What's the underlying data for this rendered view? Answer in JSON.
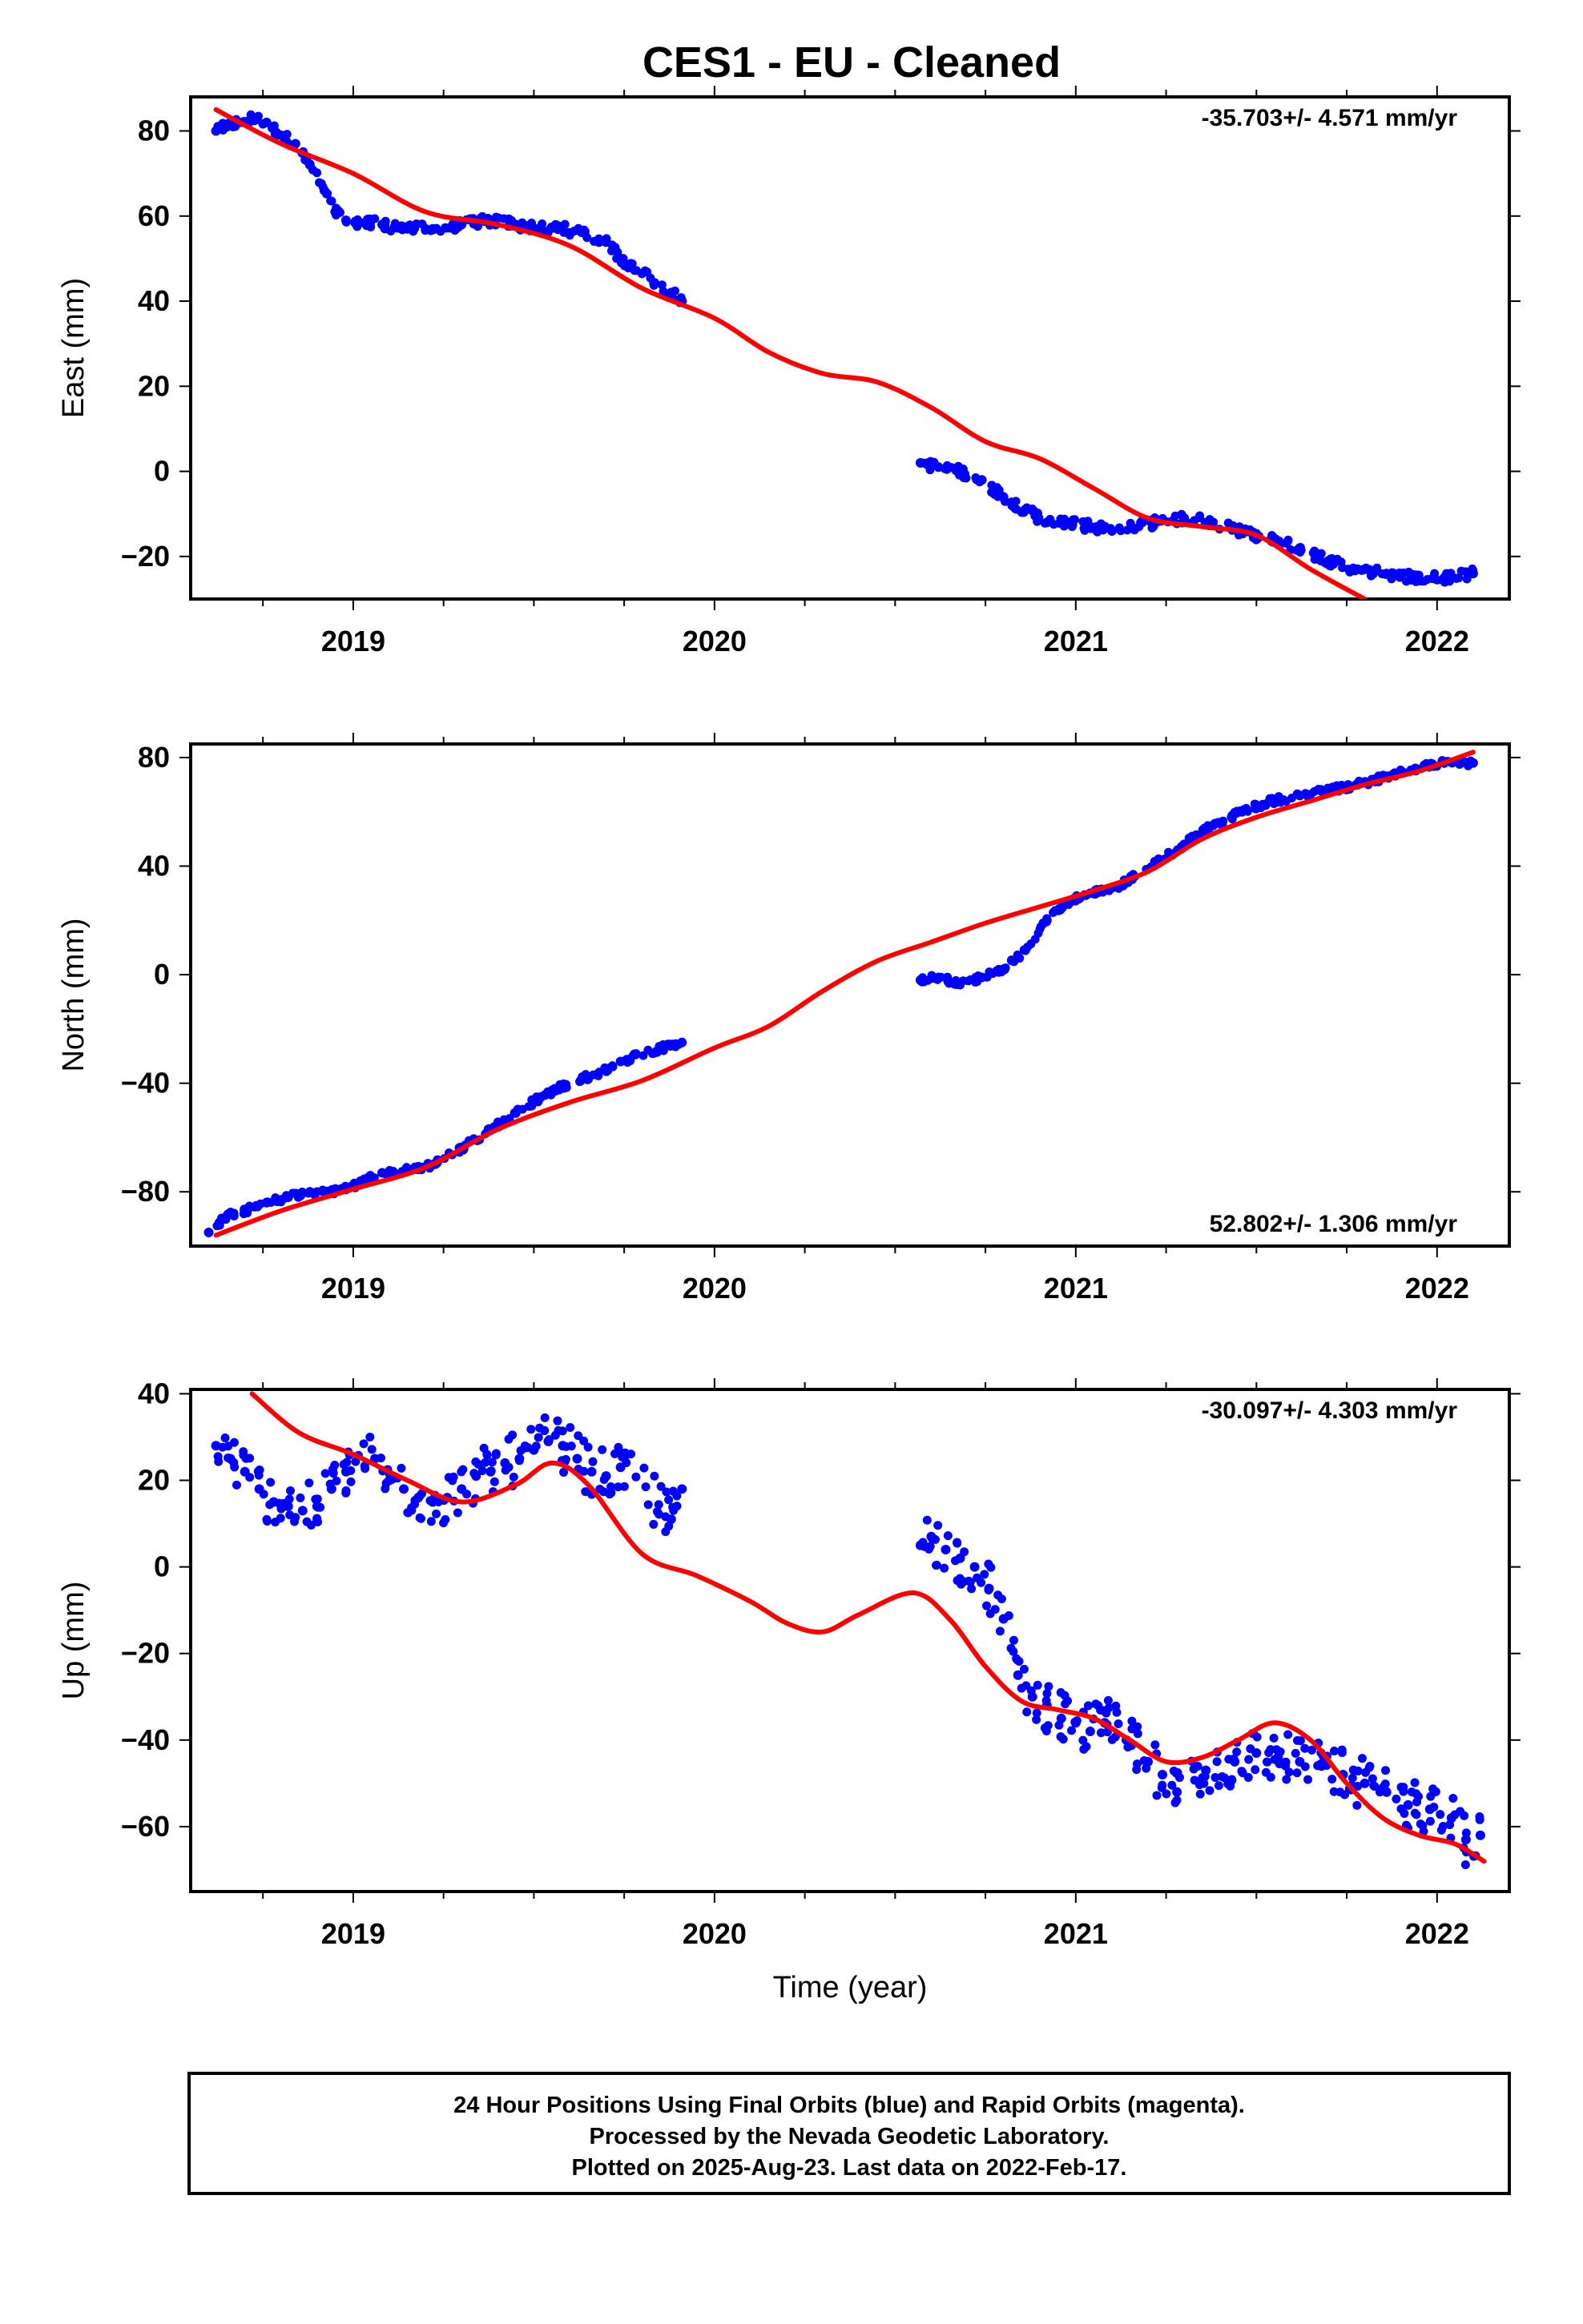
{
  "title": "CES1  - EU - Cleaned",
  "footer": {
    "lines": [
      "24 Hour Positions Using Final Orbits (blue) and Rapid Orbits (magenta).",
      "Processed by the Nevada Geodetic Laboratory.",
      "Plotted on 2025-Aug-23. Last data on 2022-Feb-17."
    ]
  },
  "colors": {
    "data_points": "#0000ff",
    "model_line": "#ff0000",
    "frame": "#000000"
  },
  "chart_data": [
    {
      "type": "scatter",
      "ylabel": "East (mm)",
      "xlabel": "",
      "rate_label": "-35.703+/- 4.571 mm/yr",
      "rate_label_position": "top-right",
      "xlim": [
        2018.55,
        2022.2
      ],
      "ylim": [
        -30,
        88
      ],
      "x_ticks": [
        2019,
        2020,
        2021,
        2022
      ],
      "y_ticks": [
        -20,
        0,
        20,
        40,
        60,
        80
      ],
      "series": [
        {
          "role": "data",
          "x": [
            2018.62,
            2018.65,
            2018.68,
            2018.72,
            2018.76,
            2018.8,
            2018.84,
            2018.88,
            2018.92,
            2018.95,
            2018.98,
            2019.08,
            2019.15,
            2019.22,
            2019.3,
            2019.38,
            2019.45,
            2019.52,
            2019.58,
            2019.64,
            2019.7,
            2019.74,
            2019.88,
            2019.91,
            2020.57,
            2020.62,
            2020.68,
            2020.74,
            2020.8,
            2020.86,
            2020.92,
            2020.98,
            2021.04,
            2021.1,
            2021.22,
            2021.3,
            2021.38,
            2021.46,
            2021.54,
            2021.62,
            2021.7,
            2021.78,
            2021.86,
            2021.94,
            2022.02,
            2022.1
          ],
          "y": [
            80,
            81,
            82,
            83,
            82,
            79,
            77,
            72,
            66,
            61,
            59,
            58,
            57,
            57,
            58,
            59,
            58,
            57,
            57,
            56,
            54,
            50,
            42,
            40,
            2,
            1,
            0,
            -2,
            -6,
            -9,
            -12,
            -12,
            -13,
            -14,
            -12,
            -11,
            -12,
            -14,
            -16,
            -18,
            -21,
            -23,
            -24,
            -25,
            -25,
            -24
          ]
        },
        {
          "role": "model",
          "x": [
            2018.62,
            2018.8,
            2019.0,
            2019.2,
            2019.4,
            2019.6,
            2019.8,
            2020.0,
            2020.15,
            2020.3,
            2020.45,
            2020.6,
            2020.75,
            2020.9,
            2021.05,
            2021.2,
            2021.35,
            2021.5,
            2021.65,
            2021.8
          ],
          "y": [
            85,
            77,
            70,
            61,
            58,
            53,
            43,
            36,
            28,
            23,
            21,
            15,
            7,
            3,
            -4,
            -11,
            -13,
            -15,
            -23,
            -30
          ]
        }
      ]
    },
    {
      "type": "scatter",
      "ylabel": "North (mm)",
      "xlabel": "",
      "rate_label": "52.802+/- 1.306 mm/yr",
      "rate_label_position": "bottom-right",
      "xlim": [
        2018.55,
        2022.2
      ],
      "ylim": [
        -100,
        85
      ],
      "x_ticks": [
        2019,
        2020,
        2021,
        2022
      ],
      "y_ticks": [
        -80,
        -40,
        0,
        40,
        80
      ],
      "series": [
        {
          "role": "data",
          "x": [
            2018.6,
            2018.65,
            2018.7,
            2018.76,
            2018.82,
            2018.88,
            2018.94,
            2019.0,
            2019.08,
            2019.15,
            2019.22,
            2019.3,
            2019.38,
            2019.45,
            2019.52,
            2019.58,
            2019.64,
            2019.7,
            2019.74,
            2019.88,
            2019.91,
            2020.57,
            2020.62,
            2020.68,
            2020.74,
            2020.8,
            2020.86,
            2020.92,
            2020.98,
            2021.04,
            2021.12,
            2021.22,
            2021.3,
            2021.38,
            2021.46,
            2021.54,
            2021.62,
            2021.7,
            2021.78,
            2021.86,
            2021.94,
            2022.02,
            2022.1
          ],
          "y": [
            -95,
            -89,
            -87,
            -84,
            -82,
            -80,
            -80,
            -78,
            -73,
            -72,
            -70,
            -64,
            -57,
            -51,
            -45,
            -41,
            -38,
            -35,
            -32,
            -26,
            -25,
            -2,
            -1,
            -3,
            -1,
            2,
            9,
            20,
            27,
            30,
            33,
            41,
            48,
            55,
            60,
            64,
            66,
            68,
            70,
            73,
            76,
            78,
            78
          ]
        },
        {
          "role": "model",
          "x": [
            2018.62,
            2018.8,
            2019.0,
            2019.2,
            2019.4,
            2019.6,
            2019.8,
            2020.0,
            2020.15,
            2020.3,
            2020.45,
            2020.6,
            2020.75,
            2020.9,
            2021.05,
            2021.2,
            2021.35,
            2021.5,
            2021.65,
            2021.8,
            2021.95,
            2022.1
          ],
          "y": [
            -96,
            -87,
            -79,
            -71,
            -57,
            -47,
            -39,
            -27,
            -19,
            -6,
            5,
            12,
            19,
            25,
            31,
            38,
            50,
            58,
            64,
            70,
            75,
            82
          ]
        }
      ]
    },
    {
      "type": "scatter",
      "ylabel": "Up (mm)",
      "xlabel": "Time (year)",
      "rate_label": "-30.097+/- 4.303 mm/yr",
      "rate_label_position": "top-right",
      "xlim": [
        2018.55,
        2022.2
      ],
      "ylim": [
        -75,
        41
      ],
      "x_ticks": [
        2019,
        2020,
        2021,
        2022
      ],
      "y_ticks": [
        -60,
        -40,
        -20,
        0,
        20,
        40
      ],
      "series": [
        {
          "role": "data",
          "x": [
            2018.62,
            2018.66,
            2018.7,
            2018.74,
            2018.78,
            2018.82,
            2018.86,
            2018.9,
            2018.94,
            2018.98,
            2019.06,
            2019.1,
            2019.14,
            2019.18,
            2019.22,
            2019.26,
            2019.3,
            2019.34,
            2019.38,
            2019.42,
            2019.46,
            2019.5,
            2019.54,
            2019.58,
            2019.62,
            2019.66,
            2019.7,
            2019.74,
            2019.88,
            2019.91,
            2020.57,
            2020.6,
            2020.64,
            2020.68,
            2020.72,
            2020.76,
            2020.8,
            2020.84,
            2020.88,
            2020.92,
            2020.96,
            2021.0,
            2021.04,
            2021.08,
            2021.14,
            2021.2,
            2021.24,
            2021.28,
            2021.36,
            2021.44,
            2021.5,
            2021.56,
            2021.62,
            2021.68,
            2021.74,
            2021.8,
            2021.86,
            2021.92,
            2021.98,
            2022.04,
            2022.08,
            2022.12
          ],
          "y": [
            28,
            25,
            22,
            18,
            15,
            14,
            13,
            14,
            18,
            22,
            25,
            20,
            18,
            16,
            15,
            16,
            18,
            21,
            22,
            24,
            25,
            27,
            29,
            28,
            25,
            22,
            21,
            23,
            11,
            18,
            5,
            7,
            4,
            2,
            0,
            -5,
            -12,
            -25,
            -30,
            -32,
            -35,
            -36,
            -38,
            -36,
            -40,
            -45,
            -48,
            -52,
            -47,
            -45,
            -43,
            -44,
            -45,
            -46,
            -48,
            -50,
            -52,
            -55,
            -56,
            -58,
            -63,
            -62
          ]
        },
        {
          "role": "model",
          "x": [
            2018.72,
            2018.85,
            2019.0,
            2019.15,
            2019.3,
            2019.45,
            2019.55,
            2019.65,
            2019.8,
            2019.95,
            2020.1,
            2020.2,
            2020.3,
            2020.4,
            2020.55,
            2020.65,
            2020.75,
            2020.85,
            2020.95,
            2021.05,
            2021.15,
            2021.25,
            2021.35,
            2021.45,
            2021.55,
            2021.65,
            2021.75,
            2021.85,
            2021.95,
            2022.05,
            2022.13
          ],
          "y": [
            40,
            31,
            26,
            20,
            15,
            19,
            24,
            19,
            3,
            -2,
            -8,
            -13,
            -15,
            -11,
            -6,
            -12,
            -23,
            -31,
            -33,
            -35,
            -40,
            -45,
            -44,
            -40,
            -36,
            -40,
            -50,
            -58,
            -62,
            -64,
            -68
          ]
        }
      ]
    }
  ]
}
